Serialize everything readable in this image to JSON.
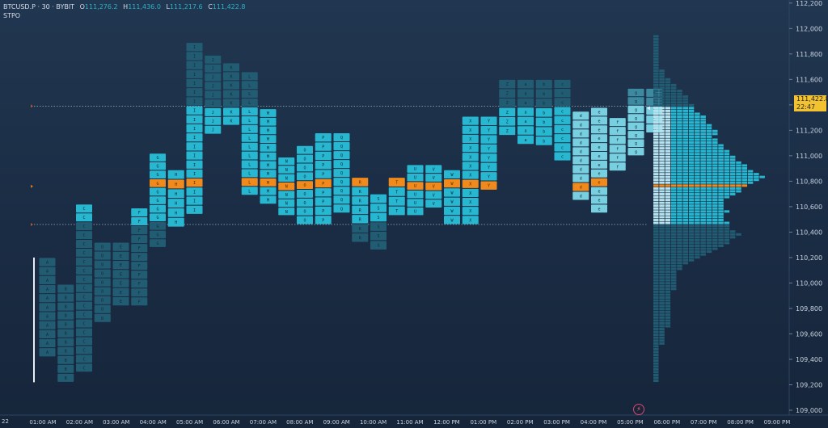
{
  "header": {
    "symbol": "BTCUSD.P · 30 · BYBIT",
    "o_label": "O",
    "o_value": "111,276.2",
    "h_label": "H",
    "h_value": "111,436.0",
    "l_label": "L",
    "l_value": "111,217.6",
    "c_label": "C",
    "c_value": "111,422.8"
  },
  "indicator_label": "STPO",
  "last_price": {
    "value": "111,422.8",
    "countdown": "22:47"
  },
  "day_label": "22",
  "colors": {
    "dark": "#225c73",
    "mid": "#1d96ae",
    "value_area": "#28b7d0",
    "light": "#77cfe0",
    "poc": "#f08a1c",
    "up_arrow": "#2f9fb8"
  },
  "chart_data": {
    "type": "tpo_profile",
    "title": "",
    "price_ticks": [
      109000,
      109200,
      109400,
      109600,
      109800,
      110000,
      110200,
      110400,
      110600,
      110800,
      111000,
      111200,
      111400,
      111600,
      111800,
      112000,
      112200
    ],
    "price_tick_labels": [
      "109,000",
      "109,200",
      "109,400",
      "109,600",
      "109,800",
      "110,000",
      "110,200",
      "110,400",
      "110,600",
      "110,800",
      "111,000",
      "111,200",
      "111,400",
      "111,600",
      "111,800",
      "112,000",
      "112,200"
    ],
    "time_labels": [
      "01:00 AM",
      "02:00 AM",
      "03:00 AM",
      "04:00 AM",
      "05:00 AM",
      "06:00 AM",
      "07:00 AM",
      "08:00 AM",
      "09:00 AM",
      "10:00 AM",
      "11:00 AM",
      "12:00 PM",
      "01:00 PM",
      "02:00 PM",
      "03:00 PM",
      "04:00 PM",
      "05:00 PM",
      "06:00 PM",
      "07:00 PM",
      "08:00 PM",
      "09:00 PM"
    ],
    "poc_price": 110760,
    "value_area_high": 111390,
    "value_area_low": 110460,
    "initial_balance": [
      109220,
      110200
    ],
    "columns": [
      {
        "letter": "A",
        "low": 109420,
        "high": 110200
      },
      {
        "letter": "B",
        "low": 109220,
        "high": 109990
      },
      {
        "letter": "C",
        "low": 109300,
        "high": 110620
      },
      {
        "letter": "D",
        "low": 109690,
        "high": 110320
      },
      {
        "letter": "E",
        "low": 109820,
        "high": 110320
      },
      {
        "letter": "F",
        "low": 109820,
        "high": 110590
      },
      {
        "letter": "G",
        "low": 110280,
        "high": 111020
      },
      {
        "letter": "H",
        "low": 110440,
        "high": 110890
      },
      {
        "letter": "I",
        "low": 110540,
        "high": 111890
      },
      {
        "letter": "J",
        "low": 111170,
        "high": 111790
      },
      {
        "letter": "K",
        "low": 111240,
        "high": 111730
      },
      {
        "letter": "L",
        "low": 110690,
        "high": 111660
      },
      {
        "letter": "M",
        "low": 110620,
        "high": 111370
      },
      {
        "letter": "N",
        "low": 110530,
        "high": 110990
      },
      {
        "letter": "O",
        "low": 110460,
        "high": 111080
      },
      {
        "letter": "P",
        "low": 110460,
        "high": 111180
      },
      {
        "letter": "Q",
        "low": 110550,
        "high": 111180
      },
      {
        "letter": "R",
        "low": 110320,
        "high": 110830
      },
      {
        "letter": "S",
        "low": 110260,
        "high": 110700
      },
      {
        "letter": "T",
        "low": 110530,
        "high": 110830
      },
      {
        "letter": "U",
        "low": 110530,
        "high": 110930
      },
      {
        "letter": "V",
        "low": 110590,
        "high": 110930
      },
      {
        "letter": "W",
        "low": 110460,
        "high": 110890
      },
      {
        "letter": "X",
        "low": 110460,
        "high": 111310
      },
      {
        "letter": "Y",
        "low": 110730,
        "high": 111310
      },
      {
        "letter": "Z",
        "low": 111160,
        "high": 111600
      },
      {
        "letter": "a",
        "low": 111090,
        "high": 111600
      },
      {
        "letter": "b",
        "low": 111080,
        "high": 111600
      },
      {
        "letter": "c",
        "low": 110960,
        "high": 111600
      },
      {
        "letter": "d",
        "low": 110650,
        "high": 111350
      },
      {
        "letter": "e",
        "low": 110550,
        "high": 111380
      },
      {
        "letter": "f",
        "low": 110880,
        "high": 111300
      },
      {
        "letter": "g",
        "low": 111000,
        "high": 111530
      },
      {
        "letter": "h",
        "low": 111180,
        "high": 111530
      }
    ],
    "composite_profile": {
      "counts": [
        1,
        1,
        1,
        1,
        1,
        1,
        1,
        1,
        1,
        1,
        1,
        1,
        1,
        2,
        2,
        2,
        2,
        2,
        2,
        3,
        3,
        3,
        3,
        3,
        3,
        3,
        3,
        3,
        3,
        3,
        3,
        3,
        4,
        4,
        4,
        4,
        4,
        4,
        4,
        5,
        5,
        6,
        7,
        8,
        9,
        10,
        11,
        12,
        13,
        13,
        14,
        15,
        14,
        13,
        13,
        13,
        12,
        12,
        12,
        13,
        12,
        12,
        12,
        12,
        13,
        14,
        15,
        15,
        16,
        17,
        18,
        19,
        18,
        17,
        16,
        16,
        15,
        14,
        14,
        13,
        13,
        12,
        12,
        11,
        11,
        10,
        11,
        11,
        10,
        10,
        9,
        9,
        9,
        8,
        7,
        7,
        7,
        6,
        6,
        6,
        5,
        5,
        4,
        4,
        3,
        3,
        2,
        2,
        2,
        1,
        1,
        1,
        1,
        1,
        1,
        1,
        1,
        1,
        1,
        1,
        1
      ]
    }
  }
}
